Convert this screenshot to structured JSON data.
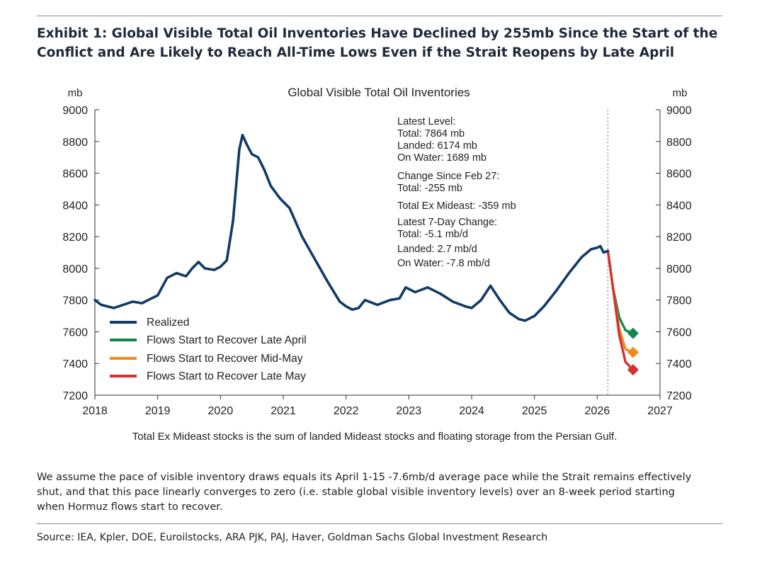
{
  "exhibit": {
    "title_line1": "Exhibit 1: Global Visible Total Oil Inventories Have Declined by 255mb Since the Start of the",
    "title_line2": "Conflict and Are Likely to Reach All-Time Lows Even if the Strait Reopens by Late April",
    "footnote_line1": "We assume the pace of visible inventory draws equals its April 1-15 -7.6mb/d average pace while the Strait remains effectively",
    "footnote_line2": "shut, and that this pace linearly converges to zero (i.e. stable global visible inventory levels) over an 8-week period starting",
    "footnote_line3": "when Hormuz flows start to recover.",
    "source": "Source: IEA, Kpler, DOE, Euroilstocks, ARA PJK, PAJ, Haver, Goldman Sachs Global Investment Research"
  },
  "chart_data": {
    "type": "line",
    "title": "Global Visible Total Oil Inventories",
    "ylabel_left": "mb",
    "ylabel_right": "mb",
    "ylim": [
      7200,
      9000
    ],
    "yticks": [
      7200,
      7400,
      7600,
      7800,
      8000,
      8200,
      8400,
      8600,
      8800,
      9000
    ],
    "xlim": [
      2018,
      2027
    ],
    "xticks": [
      2018,
      2019,
      2020,
      2021,
      2022,
      2023,
      2024,
      2025,
      2026,
      2027
    ],
    "vline_x": 2026.17,
    "note": "Total Ex Mideast stocks is the sum of landed Mideast stocks and floating storage from the Persian Gulf.",
    "legend_position": "bottom-left",
    "annotation": {
      "head1": "Latest Level:",
      "l1": "Total: 7864 mb",
      "l2": "Landed: 6174 mb",
      "l3": "On Water: 1689 mb",
      "head2": "Change Since Feb 27:",
      "l4": "Total: -255 mb",
      "l5": "Total Ex Mideast: -359 mb",
      "head3": "Latest 7-Day Change:",
      "l6": "Total: -5.1 mb/d",
      "l7": "Landed: 2.7 mb/d",
      "l8": "On Water: -7.8 mb/d"
    },
    "series": [
      {
        "name": "Realized",
        "color": "#123a66",
        "x": [
          2018.0,
          2018.1,
          2018.2,
          2018.3,
          2018.45,
          2018.6,
          2018.75,
          2018.9,
          2019.0,
          2019.15,
          2019.3,
          2019.45,
          2019.55,
          2019.65,
          2019.75,
          2019.9,
          2020.0,
          2020.1,
          2020.2,
          2020.3,
          2020.35,
          2020.42,
          2020.5,
          2020.6,
          2020.7,
          2020.8,
          2020.95,
          2021.1,
          2021.3,
          2021.5,
          2021.7,
          2021.9,
          2022.0,
          2022.1,
          2022.2,
          2022.3,
          2022.5,
          2022.7,
          2022.85,
          2022.95,
          2023.1,
          2023.3,
          2023.5,
          2023.7,
          2023.9,
          2024.0,
          2024.15,
          2024.3,
          2024.45,
          2024.6,
          2024.75,
          2024.85,
          2025.0,
          2025.15,
          2025.35,
          2025.55,
          2025.75,
          2025.9,
          2026.0,
          2026.05,
          2026.1,
          2026.17
        ],
        "values": [
          7800,
          7770,
          7760,
          7750,
          7770,
          7790,
          7780,
          7810,
          7830,
          7940,
          7970,
          7950,
          8000,
          8040,
          8000,
          7990,
          8010,
          8050,
          8300,
          8750,
          8840,
          8780,
          8720,
          8700,
          8620,
          8520,
          8440,
          8380,
          8200,
          8060,
          7920,
          7790,
          7760,
          7740,
          7750,
          7800,
          7770,
          7800,
          7810,
          7880,
          7850,
          7880,
          7840,
          7790,
          7760,
          7750,
          7800,
          7890,
          7800,
          7720,
          7680,
          7670,
          7700,
          7760,
          7860,
          7970,
          8070,
          8120,
          8130,
          8140,
          8100,
          8110
        ]
      },
      {
        "name": "Flows Start to Recover Late April",
        "color": "#13884a",
        "x": [
          2026.17,
          2026.25,
          2026.35,
          2026.45,
          2026.57
        ],
        "values": [
          8110,
          7880,
          7690,
          7610,
          7590
        ]
      },
      {
        "name": "Flows Start to Recover Mid-May",
        "color": "#f28a1f",
        "x": [
          2026.17,
          2026.25,
          2026.35,
          2026.45,
          2026.57
        ],
        "values": [
          8110,
          7880,
          7620,
          7490,
          7470
        ]
      },
      {
        "name": "Flows Start to Recover Late May",
        "color": "#d43130",
        "x": [
          2026.17,
          2026.25,
          2026.35,
          2026.45,
          2026.57
        ],
        "values": [
          8110,
          7880,
          7580,
          7410,
          7360
        ]
      }
    ]
  }
}
